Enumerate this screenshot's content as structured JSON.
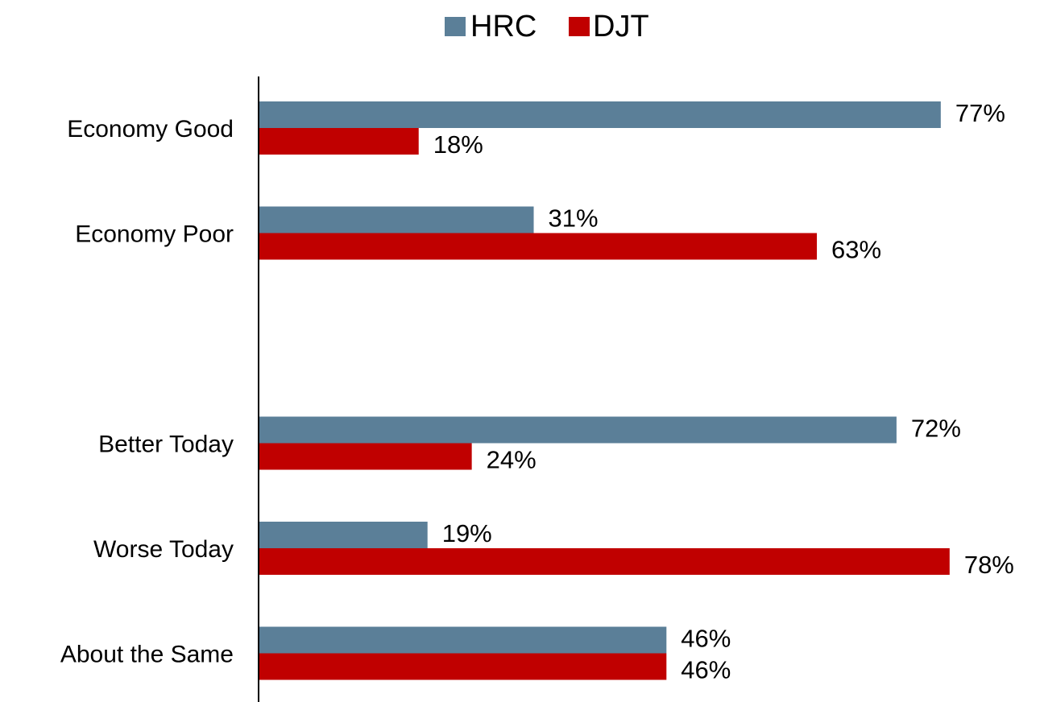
{
  "chart_data": {
    "type": "bar",
    "orientation": "horizontal",
    "categories": [
      "Economy Good",
      "Economy Poor",
      "",
      "Better Today",
      "Worse Today",
      "About the Same"
    ],
    "series": [
      {
        "name": "HRC",
        "color": "#5b7f98",
        "values": [
          77,
          31,
          null,
          72,
          19,
          46
        ],
        "labels": [
          "77%",
          "31%",
          "",
          "72%",
          "19%",
          "46%"
        ]
      },
      {
        "name": "DJT",
        "color": "#c00000",
        "values": [
          18,
          63,
          null,
          24,
          78,
          46
        ],
        "labels": [
          "18%",
          "63%",
          "",
          "24%",
          "78%",
          "46%"
        ]
      }
    ],
    "xlim": [
      0,
      100
    ],
    "legend_position": "top-center",
    "grid": false
  }
}
